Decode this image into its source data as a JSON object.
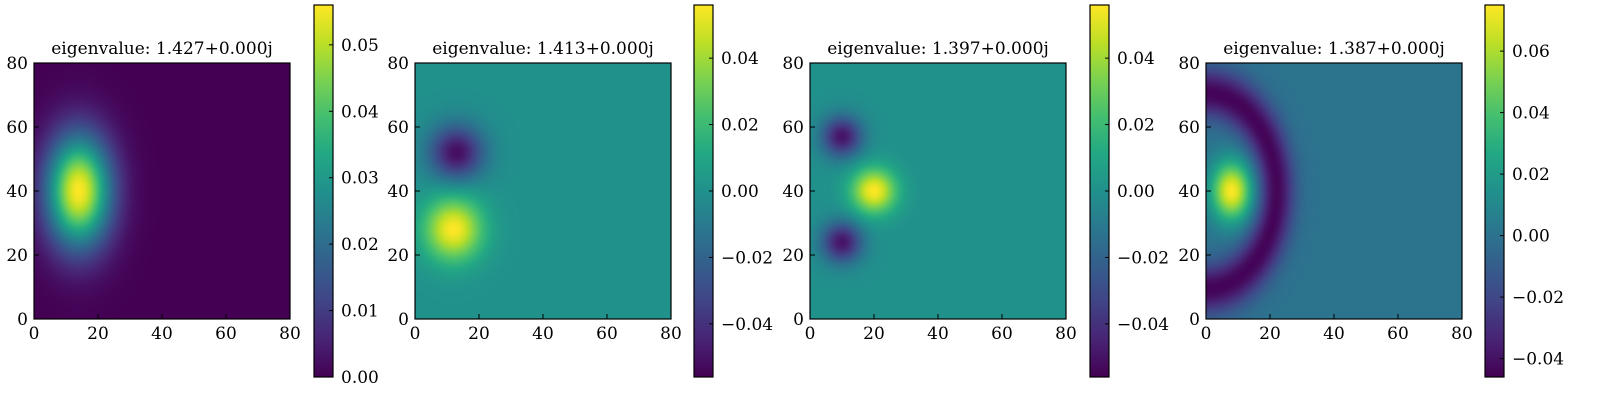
{
  "chart_data": [
    {
      "type": "heatmap",
      "title": "eigenvalue: 1.427+0.000j",
      "xlim": [
        0,
        80
      ],
      "ylim": [
        0,
        80
      ],
      "x_ticks": [
        "0",
        "20",
        "40",
        "60",
        "80"
      ],
      "y_ticks": [
        "0",
        "20",
        "40",
        "60",
        "80"
      ],
      "colormap": "viridis",
      "colorbar_range": [
        0,
        0.056
      ],
      "colorbar_ticks": [
        {
          "value": 0.0,
          "label": "0.00"
        },
        {
          "value": 0.01,
          "label": "0.01"
        },
        {
          "value": 0.02,
          "label": "0.02"
        },
        {
          "value": 0.03,
          "label": "0.03"
        },
        {
          "value": 0.04,
          "label": "0.04"
        },
        {
          "value": 0.05,
          "label": "0.05"
        }
      ],
      "background_value": 0.0,
      "lobes": [
        {
          "x": 14,
          "y": 40,
          "sx": 7,
          "sy": 12,
          "value": 0.056
        }
      ],
      "cutoff_radius": 30
    },
    {
      "type": "heatmap",
      "title": "eigenvalue: 1.413+0.000j",
      "xlim": [
        0,
        80
      ],
      "ylim": [
        0,
        80
      ],
      "x_ticks": [
        "0",
        "20",
        "40",
        "60",
        "80"
      ],
      "y_ticks": [
        "0",
        "20",
        "40",
        "60",
        "80"
      ],
      "colormap": "viridis",
      "colorbar_range": [
        -0.056,
        0.056
      ],
      "colorbar_ticks": [
        {
          "value": -0.04,
          "label": "−0.04"
        },
        {
          "value": -0.02,
          "label": "−0.02"
        },
        {
          "value": 0.0,
          "label": "0.00"
        },
        {
          "value": 0.02,
          "label": "0.02"
        },
        {
          "value": 0.04,
          "label": "0.04"
        }
      ],
      "background_value": 0.0,
      "lobes": [
        {
          "x": 13,
          "y": 52,
          "sx": 6,
          "sy": 6,
          "value": -0.052
        },
        {
          "x": 12,
          "y": 28,
          "sx": 6.5,
          "sy": 7,
          "value": 0.056
        }
      ],
      "cutoff_radius": 32
    },
    {
      "type": "heatmap",
      "title": "eigenvalue: 1.397+0.000j",
      "xlim": [
        0,
        80
      ],
      "ylim": [
        0,
        80
      ],
      "x_ticks": [
        "0",
        "20",
        "40",
        "60",
        "80"
      ],
      "y_ticks": [
        "0",
        "20",
        "40",
        "60",
        "80"
      ],
      "colormap": "viridis",
      "colorbar_range": [
        -0.056,
        0.056
      ],
      "colorbar_ticks": [
        {
          "value": -0.04,
          "label": "−0.04"
        },
        {
          "value": -0.02,
          "label": "−0.02"
        },
        {
          "value": 0.0,
          "label": "0.00"
        },
        {
          "value": 0.02,
          "label": "0.02"
        },
        {
          "value": 0.04,
          "label": "0.04"
        }
      ],
      "background_value": 0.0,
      "lobes": [
        {
          "x": 10,
          "y": 57,
          "sx": 4.5,
          "sy": 4.5,
          "value": -0.05
        },
        {
          "x": 20,
          "y": 40,
          "sx": 5,
          "sy": 5,
          "value": 0.056
        },
        {
          "x": 10,
          "y": 24,
          "sx": 4.5,
          "sy": 4.5,
          "value": -0.05
        }
      ],
      "cutoff_radius": 33
    },
    {
      "type": "heatmap",
      "title": "eigenvalue: 1.387+0.000j",
      "xlim": [
        0,
        80
      ],
      "ylim": [
        0,
        80
      ],
      "x_ticks": [
        "0",
        "20",
        "40",
        "60",
        "80"
      ],
      "y_ticks": [
        "0",
        "20",
        "40",
        "60",
        "80"
      ],
      "colormap": "viridis",
      "colorbar_range": [
        -0.046,
        0.075
      ],
      "colorbar_ticks": [
        {
          "value": -0.04,
          "label": "−0.04"
        },
        {
          "value": -0.02,
          "label": "−0.02"
        },
        {
          "value": 0.0,
          "label": "0.00"
        },
        {
          "value": 0.02,
          "label": "0.02"
        },
        {
          "value": 0.04,
          "label": "0.04"
        },
        {
          "value": 0.06,
          "label": "0.06"
        }
      ],
      "background_value": 0.0,
      "lobes": [
        {
          "x": 8,
          "y": 40,
          "sx": 4.5,
          "sy": 6.5,
          "value": 0.075
        }
      ],
      "rings": [
        {
          "cx": 0,
          "cy": 40,
          "radius": 22,
          "width": 4,
          "value": -0.045
        }
      ],
      "cutoff_radius": 32
    }
  ]
}
